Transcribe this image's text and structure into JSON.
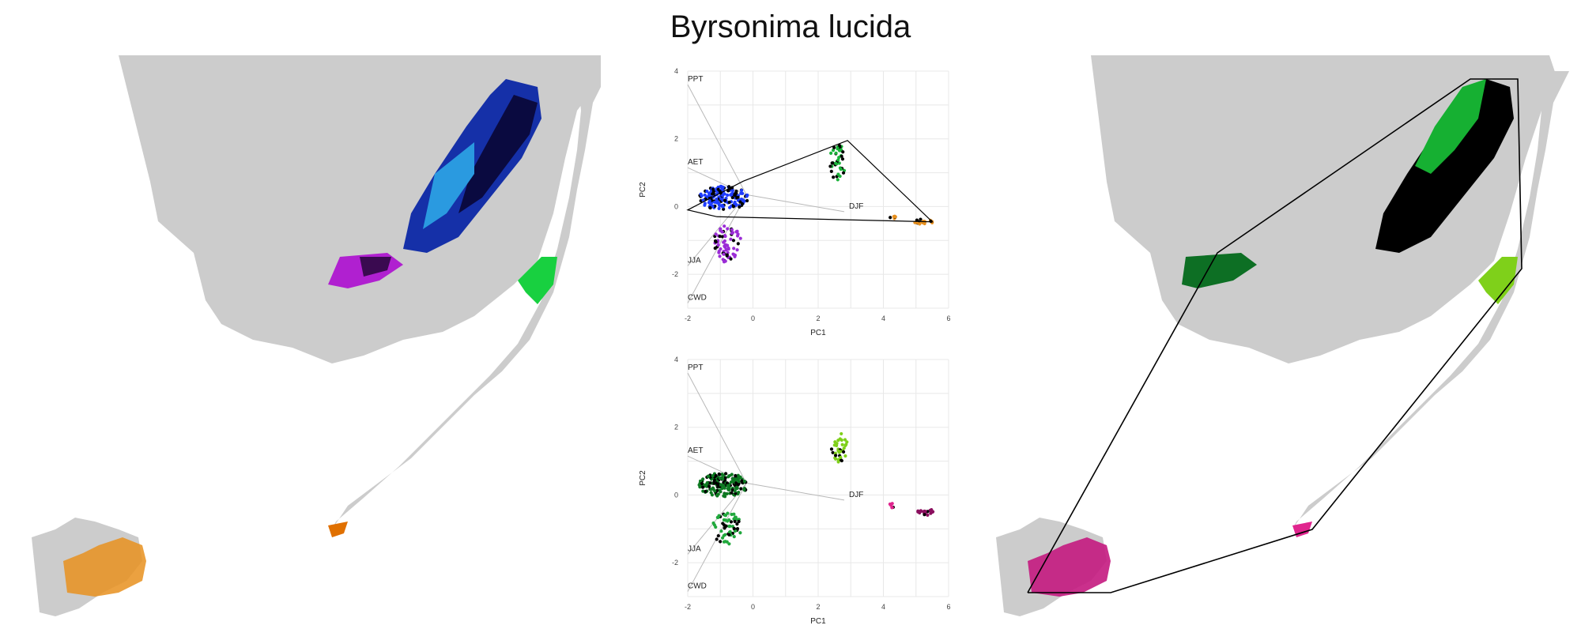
{
  "title": "Byrsonima lucida",
  "colors": {
    "land": "#cccccc",
    "grid": "#e8e8e8",
    "loading_line": "#b8b8b8",
    "hull": "#000000"
  },
  "chart_data": [
    {
      "type": "scatter",
      "panel": "pca-top",
      "xlabel": "PC1",
      "ylabel": "PC2",
      "xlim": [
        -2,
        6
      ],
      "ylim": [
        -3,
        4
      ],
      "xticks": [
        "-2",
        "0",
        "2",
        "4",
        "6"
      ],
      "yticks": [
        "-2",
        "0",
        "2",
        "4"
      ],
      "grid": true,
      "loadings": [
        {
          "label": "PPT",
          "x": -2.0,
          "y": 3.6
        },
        {
          "label": "AET",
          "x": -2.0,
          "y": 1.15
        },
        {
          "label": "DJF",
          "x": 2.8,
          "y": -0.15
        },
        {
          "label": "JJA",
          "x": -2.0,
          "y": -1.75
        },
        {
          "label": "CWD",
          "x": -2.0,
          "y": -2.85
        }
      ],
      "clusters": [
        {
          "name": "",
          "color": "#1e3cff",
          "cx": -0.9,
          "cy": 0.25,
          "rx": 0.75,
          "ry": 0.35,
          "n": 160
        },
        {
          "name": "",
          "color": "#9b2cd6",
          "cx": -0.8,
          "cy": -1.1,
          "rx": 0.45,
          "ry": 0.55,
          "n": 70
        },
        {
          "name": "",
          "color": "#1bb33a",
          "cx": 2.6,
          "cy": 1.3,
          "rx": 0.25,
          "ry": 0.55,
          "n": 40
        },
        {
          "name": "",
          "color": "#e8901e",
          "cx": 5.25,
          "cy": -0.45,
          "rx": 0.3,
          "ry": 0.08,
          "n": 20
        },
        {
          "name": "",
          "color": "#e8901e",
          "cx": 4.3,
          "cy": -0.3,
          "rx": 0.1,
          "ry": 0.08,
          "n": 6
        }
      ],
      "hull": [
        [
          -2.0,
          -0.1
        ],
        [
          -0.3,
          0.75
        ],
        [
          2.9,
          1.95
        ],
        [
          5.5,
          -0.45
        ],
        [
          -1.1,
          -0.3
        ]
      ]
    },
    {
      "type": "scatter",
      "panel": "pca-bottom",
      "xlabel": "PC1",
      "ylabel": "PC2",
      "xlim": [
        -2,
        6
      ],
      "ylim": [
        -3,
        4
      ],
      "xticks": [
        "-2",
        "0",
        "2",
        "4",
        "6"
      ],
      "yticks": [
        "-2",
        "0",
        "2",
        "4"
      ],
      "grid": true,
      "loadings": [
        {
          "label": "PPT",
          "x": -2.0,
          "y": 3.6
        },
        {
          "label": "AET",
          "x": -2.0,
          "y": 1.15
        },
        {
          "label": "DJF",
          "x": 2.8,
          "y": -0.15
        },
        {
          "label": "JJA",
          "x": -2.0,
          "y": -1.75
        },
        {
          "label": "CWD",
          "x": -2.0,
          "y": -2.85
        }
      ],
      "clusters": [
        {
          "name": "",
          "color": "#0e7a22",
          "cx": -0.9,
          "cy": 0.3,
          "rx": 0.75,
          "ry": 0.35,
          "n": 170
        },
        {
          "name": "",
          "color": "#21a83d",
          "cx": -0.8,
          "cy": -1.0,
          "rx": 0.45,
          "ry": 0.5,
          "n": 60
        },
        {
          "name": "",
          "color": "#7fd01a",
          "cx": 2.65,
          "cy": 1.4,
          "rx": 0.25,
          "ry": 0.45,
          "n": 35
        },
        {
          "name": "",
          "color": "#8a0f5e",
          "cx": 5.3,
          "cy": -0.5,
          "rx": 0.25,
          "ry": 0.1,
          "n": 18
        },
        {
          "name": "",
          "color": "#e0258e",
          "cx": 4.25,
          "cy": -0.3,
          "rx": 0.08,
          "ry": 0.08,
          "n": 6
        }
      ],
      "hull": []
    }
  ]
}
